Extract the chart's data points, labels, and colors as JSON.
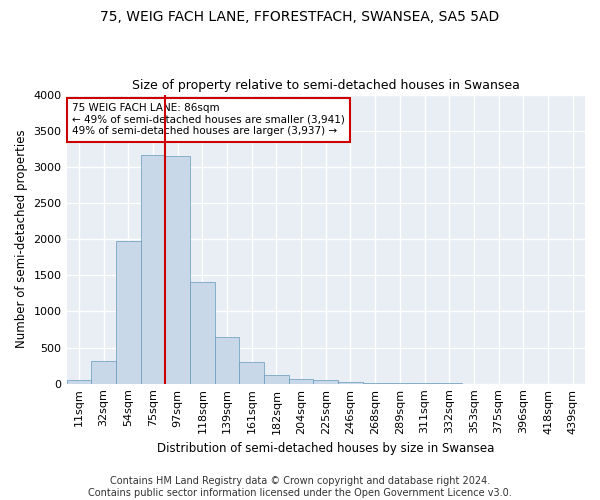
{
  "title": "75, WEIG FACH LANE, FFORESTFACH, SWANSEA, SA5 5AD",
  "subtitle": "Size of property relative to semi-detached houses in Swansea",
  "xlabel": "Distribution of semi-detached houses by size in Swansea",
  "ylabel": "Number of semi-detached properties",
  "footer": "Contains HM Land Registry data © Crown copyright and database right 2024.\nContains public sector information licensed under the Open Government Licence v3.0.",
  "categories": [
    "11sqm",
    "32sqm",
    "54sqm",
    "75sqm",
    "97sqm",
    "118sqm",
    "139sqm",
    "161sqm",
    "182sqm",
    "204sqm",
    "225sqm",
    "246sqm",
    "268sqm",
    "289sqm",
    "311sqm",
    "332sqm",
    "353sqm",
    "375sqm",
    "396sqm",
    "418sqm",
    "439sqm"
  ],
  "values": [
    50,
    310,
    1980,
    3170,
    3150,
    1400,
    640,
    300,
    120,
    70,
    50,
    30,
    15,
    8,
    4,
    3,
    2,
    1,
    1,
    1,
    1
  ],
  "bar_color": "#c8d8e8",
  "bar_edge_color": "#6699bb",
  "background_color": "#e8eef4",
  "grid_color": "#ffffff",
  "vline_x_index": 4,
  "vline_color": "#cc0000",
  "annotation_text": "75 WEIG FACH LANE: 86sqm\n← 49% of semi-detached houses are smaller (3,941)\n49% of semi-detached houses are larger (3,937) →",
  "annotation_box_color": "#ffffff",
  "annotation_box_edge": "#cc0000",
  "ylim": [
    0,
    4000
  ],
  "yticks": [
    0,
    500,
    1000,
    1500,
    2000,
    2500,
    3000,
    3500,
    4000
  ],
  "title_fontsize": 10,
  "subtitle_fontsize": 9,
  "label_fontsize": 8.5,
  "tick_fontsize": 8,
  "footer_fontsize": 7
}
